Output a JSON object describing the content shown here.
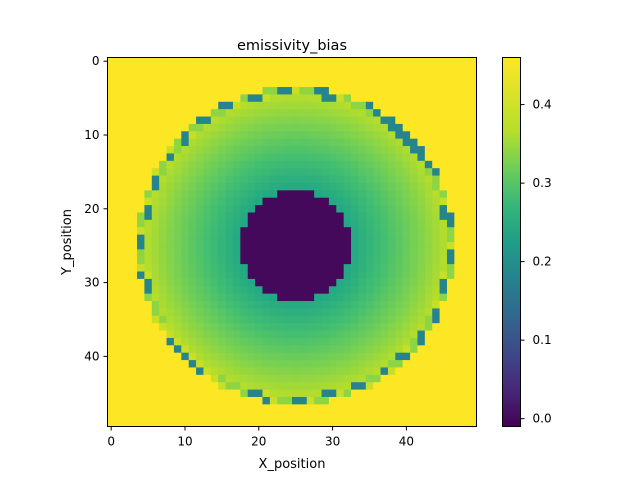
{
  "chart_data": {
    "type": "heatmap",
    "title": "emissivity_bias",
    "xlabel": "X_position",
    "ylabel": "Y_position",
    "rows": 50,
    "cols": 50,
    "xlim": [
      -0.5,
      49.5
    ],
    "ylim": [
      49.5,
      -0.5
    ],
    "x_ticks": [
      0,
      10,
      20,
      30,
      40
    ],
    "y_ticks": [
      0,
      10,
      20,
      30,
      40
    ],
    "colormap": "viridis",
    "color_range": [
      -0.01,
      0.46
    ],
    "colorbar_ticks": [
      0.0,
      0.1,
      0.2,
      0.3,
      0.4
    ],
    "background_value": 0.46,
    "disk": {
      "center": [
        25,
        25
      ],
      "inner_radius": 7.5,
      "outer_radius": 21.5,
      "inner_value": 0.0,
      "value_at_inner_edge": 0.27,
      "value_at_outer_edge": 0.42,
      "rim_speckle_values": [
        0.2,
        0.38,
        0.42
      ]
    }
  }
}
